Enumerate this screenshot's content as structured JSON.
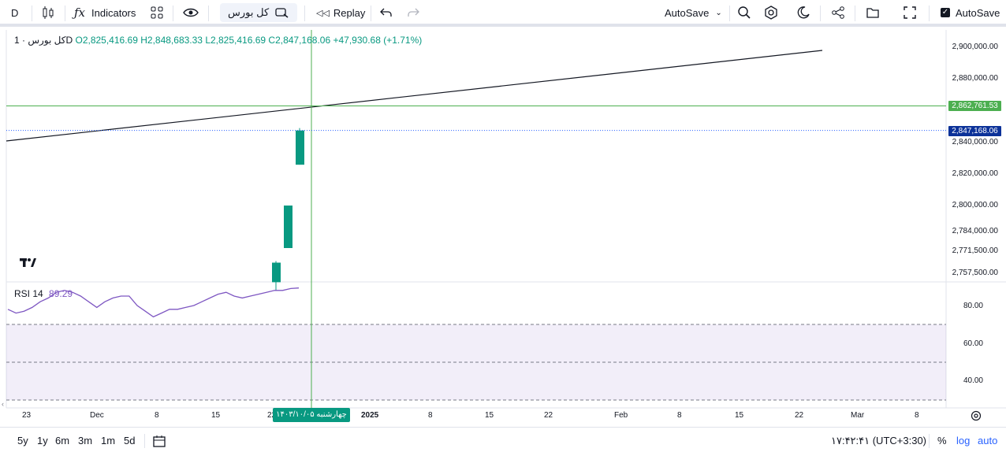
{
  "toolbar": {
    "interval": "D",
    "indicators_label": "Indicators",
    "symbol_search": "کل بورس",
    "replay_label": "Replay",
    "autosave_dropdown": "AutoSave",
    "autosave_checkbox": "AutoSave"
  },
  "legend": {
    "title": "کل بورس · 1D",
    "open": "O2,825,416.69",
    "high": "H2,848,683.33",
    "low": "L2,825,416.69",
    "close": "C2,847,168.06",
    "change": "+47,930.68 (+1.71%)"
  },
  "rsi_legend": {
    "name": "RSI 14",
    "value": "89.29"
  },
  "price_axis": {
    "labels": [
      "2,900,000.00",
      "2,880,000.00",
      "2,840,000.00",
      "2,820,000.00",
      "2,800,000.00",
      "2,784,000.00",
      "2,771,500.00",
      "2,757,500.00"
    ],
    "crosshair_tag": "2,862,761.53",
    "last_price_tag": "2,847,168.06"
  },
  "rsi_axis": {
    "labels": [
      "80.00",
      "60.00",
      "40.00"
    ]
  },
  "time_axis": {
    "labels": [
      "23",
      "Dec",
      "8",
      "15",
      "22",
      "2025",
      "8",
      "15",
      "22",
      "Feb",
      "8",
      "15",
      "22",
      "Mar",
      "8"
    ],
    "crosshair_date": "چهارشنبه ۱۴۰۳/۱۰/۰۵"
  },
  "bottom_bar": {
    "ranges": [
      "5y",
      "1y",
      "6m",
      "3m",
      "1m",
      "5d"
    ],
    "clock": "۱۷:۴۲:۴۱ (UTC+3:30)",
    "percent": "%",
    "log": "log",
    "auto": "auto"
  },
  "colors": {
    "up": "#089981",
    "rsi_line": "#7e57c2",
    "crosshair": "#4caf50",
    "last_price": "#0c3299",
    "rsi_band": "#7e57c2"
  },
  "chart_data": {
    "type": "candlestick",
    "candles": [
      {
        "open": 2752000,
        "close": 2764000,
        "high": 2765000,
        "low": 2747000
      },
      {
        "open": 2773000,
        "close": 2800000,
        "high": 2800000,
        "low": 2773000
      },
      {
        "open": 2825416.69,
        "close": 2847168.06,
        "high": 2848683.33,
        "low": 2825416.69
      }
    ],
    "trendline": {
      "start": 2840500,
      "end": 2898000
    },
    "crosshair_price": 2862761.53,
    "rsi": {
      "period": 14,
      "values": [
        78,
        76,
        77,
        79,
        82,
        84,
        87,
        88,
        87,
        85,
        82,
        79,
        82,
        84,
        85,
        85,
        80,
        77,
        74,
        76,
        78,
        78,
        79,
        80,
        82,
        84,
        86,
        87,
        85,
        84,
        85,
        86,
        87,
        88,
        88,
        89,
        89.29
      ],
      "levels": [
        70,
        50,
        30
      ]
    }
  }
}
